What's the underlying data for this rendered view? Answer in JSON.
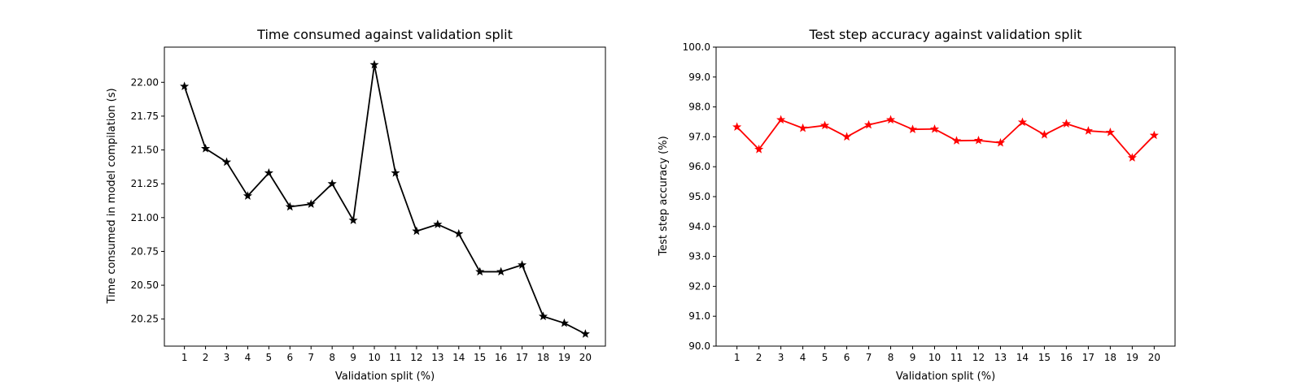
{
  "chart_data": [
    {
      "type": "line",
      "title": "Time consumed against validation split",
      "xlabel": "Validation split (%)",
      "ylabel": "Time consumed in model compilation (s)",
      "x": [
        1,
        2,
        3,
        4,
        5,
        6,
        7,
        8,
        9,
        10,
        11,
        12,
        13,
        14,
        15,
        16,
        17,
        18,
        19,
        20
      ],
      "xticks": [
        "1",
        "2",
        "3",
        "4",
        "5",
        "6",
        "7",
        "8",
        "9",
        "10",
        "11",
        "12",
        "13",
        "14",
        "15",
        "16",
        "17",
        "18",
        "19",
        "20"
      ],
      "xlim": [
        0.05,
        20.95
      ],
      "ylim": [
        20.05,
        22.26
      ],
      "yticks": [
        "20.25",
        "20.50",
        "20.75",
        "21.00",
        "21.25",
        "21.50",
        "21.75",
        "22.00"
      ],
      "ytick_values": [
        20.25,
        20.5,
        20.75,
        21.0,
        21.25,
        21.5,
        21.75,
        22.0
      ],
      "grid": false,
      "series": [
        {
          "color": "#000000",
          "marker": "star",
          "values": [
            21.97,
            21.51,
            21.41,
            21.16,
            21.33,
            21.08,
            21.1,
            21.25,
            20.98,
            22.13,
            21.33,
            20.9,
            20.95,
            20.88,
            20.6,
            20.6,
            20.65,
            20.27,
            20.22,
            20.14
          ]
        }
      ]
    },
    {
      "type": "line",
      "title": "Test step accuracy against validation split",
      "xlabel": "Validation split (%)",
      "ylabel": "Test step accuracy (%)",
      "x": [
        1,
        2,
        3,
        4,
        5,
        6,
        7,
        8,
        9,
        10,
        11,
        12,
        13,
        14,
        15,
        16,
        17,
        18,
        19,
        20
      ],
      "xticks": [
        "1",
        "2",
        "3",
        "4",
        "5",
        "6",
        "7",
        "8",
        "9",
        "10",
        "11",
        "12",
        "13",
        "14",
        "15",
        "16",
        "17",
        "18",
        "19",
        "20"
      ],
      "xlim": [
        0.05,
        20.95
      ],
      "ylim": [
        90.0,
        100.0
      ],
      "yticks": [
        "90.0",
        "91.0",
        "92.0",
        "93.0",
        "94.0",
        "95.0",
        "96.0",
        "97.0",
        "98.0",
        "99.0",
        "100.0"
      ],
      "ytick_values": [
        90,
        91,
        92,
        93,
        94,
        95,
        96,
        97,
        98,
        99,
        100
      ],
      "grid": false,
      "series": [
        {
          "color": "#ff0000",
          "marker": "star",
          "values": [
            97.33,
            96.58,
            97.57,
            97.29,
            97.38,
            97.0,
            97.4,
            97.57,
            97.25,
            97.26,
            96.87,
            96.88,
            96.8,
            97.49,
            97.07,
            97.44,
            97.2,
            97.15,
            96.3,
            97.05
          ]
        }
      ]
    }
  ]
}
